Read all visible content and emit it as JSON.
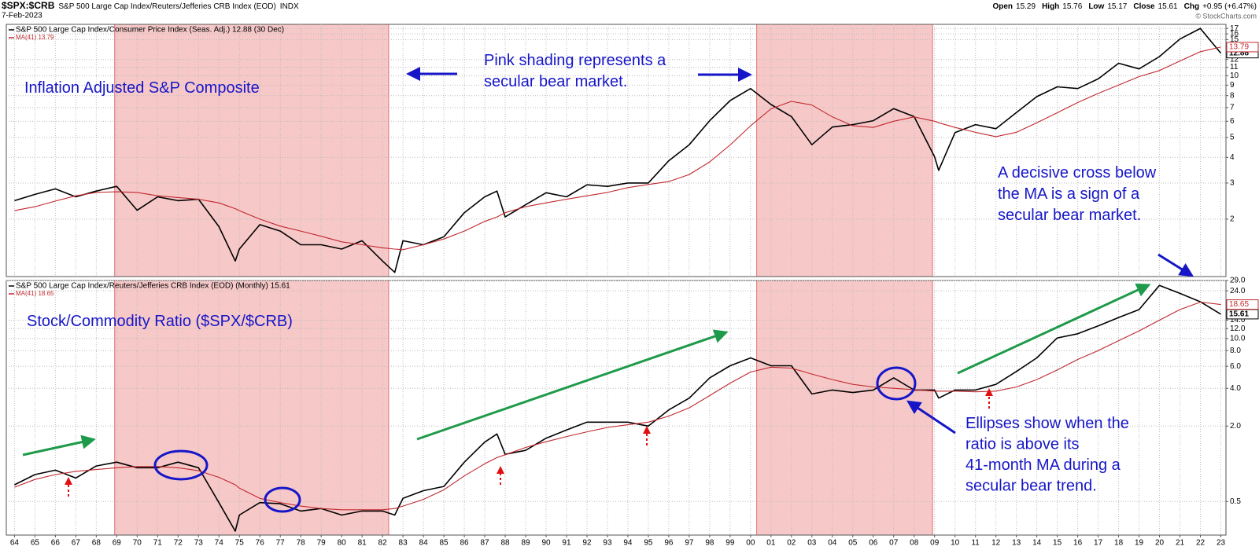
{
  "header": {
    "symbol": "$SPX:$CRB",
    "description": "S&P 500 Large Cap Index/Reuters/Jefferies CRB Index (EOD)",
    "exchange": "INDX",
    "date": "7-Feb-2023",
    "quote": [
      {
        "label": "Open",
        "value": 15.29
      },
      {
        "label": "High",
        "value": 15.76
      },
      {
        "label": "Low",
        "value": 15.17
      },
      {
        "label": "Close",
        "value": 15.61
      },
      {
        "label": "Chg",
        "value": "+0.95 (+6.47%)"
      }
    ],
    "watermark": "© StockCharts.com"
  },
  "chart_data": [
    {
      "type": "line",
      "log_y": true,
      "grid": true,
      "x": [
        1964,
        1965,
        1966,
        1967,
        1968,
        1969,
        1970,
        1971,
        1972,
        1973,
        1974,
        1974.8,
        1975,
        1976,
        1977,
        1978,
        1979,
        1980,
        1981,
        1982,
        1982.6,
        1983,
        1984,
        1985,
        1986,
        1987,
        1987.6,
        1988,
        1989,
        1990,
        1991,
        1992,
        1993,
        1994,
        1995,
        1996,
        1997,
        1998,
        1999,
        2000,
        2001,
        2002,
        2003,
        2004,
        2005,
        2006,
        2007,
        2008,
        2009,
        2009.2,
        2010,
        2011,
        2012,
        2013,
        2014,
        2015,
        2016,
        2017,
        2018,
        2019,
        2020,
        2021,
        2022,
        2023
      ],
      "series": [
        {
          "name": "S&P 500 Large Cap Index/Consumer Price Index (Seas. Adj.) 12.88 (30 Dec)",
          "color": "#000000",
          "last_value": 12.88,
          "values": [
            2.46,
            2.64,
            2.81,
            2.57,
            2.74,
            2.89,
            2.21,
            2.57,
            2.46,
            2.5,
            1.84,
            1.25,
            1.43,
            1.88,
            1.75,
            1.5,
            1.5,
            1.43,
            1.57,
            1.25,
            1.1,
            1.57,
            1.5,
            1.64,
            2.15,
            2.57,
            2.74,
            2.05,
            2.35,
            2.69,
            2.57,
            2.94,
            2.89,
            3.0,
            3.0,
            3.85,
            4.61,
            6.04,
            7.57,
            8.66,
            7.24,
            6.32,
            4.61,
            5.62,
            5.78,
            6.04,
            6.91,
            6.32,
            4.03,
            3.46,
            5.28,
            5.78,
            5.52,
            6.62,
            7.91,
            8.83,
            8.66,
            9.65,
            11.5,
            10.8,
            12.4,
            15.1,
            17.0,
            12.88
          ]
        },
        {
          "name": "MA(41) 13.79",
          "color": "#c0282e",
          "last_value": 13.79,
          "values": [
            2.2,
            2.3,
            2.45,
            2.6,
            2.7,
            2.72,
            2.7,
            2.6,
            2.55,
            2.5,
            2.4,
            2.25,
            2.2,
            2.0,
            1.85,
            1.75,
            1.65,
            1.55,
            1.5,
            1.45,
            1.43,
            1.42,
            1.5,
            1.6,
            1.75,
            1.95,
            2.05,
            2.15,
            2.3,
            2.4,
            2.5,
            2.6,
            2.7,
            2.85,
            2.95,
            3.05,
            3.3,
            3.8,
            4.6,
            5.7,
            6.9,
            7.5,
            7.2,
            6.3,
            5.7,
            5.6,
            6.0,
            6.3,
            6.0,
            5.9,
            5.6,
            5.3,
            5.05,
            5.3,
            5.9,
            6.6,
            7.4,
            8.2,
            9.0,
            9.9,
            10.6,
            11.8,
            13.1,
            13.79
          ]
        }
      ],
      "xlim": [
        1963.6,
        2023.25
      ],
      "ylim": [
        1.05,
        17.8
      ],
      "yticks": [
        2,
        3,
        4,
        5,
        6,
        7,
        8,
        9,
        10,
        11,
        12,
        15,
        16,
        17
      ],
      "shaded_ranges": [
        [
          1968.9,
          1982.3
        ],
        [
          2000.3,
          2008.9
        ]
      ],
      "annotations": [
        {
          "lines": [
            "Inflation Adjusted S&P Composite"
          ]
        },
        {
          "lines": [
            "Pink shading represents a",
            "secular bear market."
          ]
        },
        {
          "lines": [
            "A decisive cross below",
            "the MA is a sign of a",
            "secular bear market."
          ]
        }
      ]
    },
    {
      "type": "line",
      "log_y": true,
      "grid": true,
      "x": [
        1964,
        1965,
        1966,
        1967,
        1968,
        1969,
        1970,
        1971,
        1972,
        1973,
        1974,
        1974.8,
        1975,
        1976,
        1977,
        1978,
        1979,
        1980,
        1981,
        1982,
        1982.6,
        1983,
        1984,
        1985,
        1986,
        1987,
        1987.6,
        1988,
        1989,
        1990,
        1991,
        1992,
        1993,
        1994,
        1995,
        1996,
        1997,
        1998,
        1999,
        2000,
        2001,
        2002,
        2003,
        2004,
        2005,
        2006,
        2007,
        2008,
        2009,
        2009.2,
        2010,
        2011,
        2012,
        2013,
        2014,
        2015,
        2016,
        2017,
        2018,
        2019,
        2020,
        2021,
        2022,
        2023
      ],
      "series": [
        {
          "name": "S&P 500 Large Cap Index/Reuters/Jefferies CRB Index (EOD) (Monthly) 15.61",
          "color": "#000000",
          "last_value": 15.61,
          "values": [
            0.68,
            0.82,
            0.89,
            0.77,
            0.96,
            1.03,
            0.93,
            0.93,
            1.03,
            0.93,
            0.49,
            0.29,
            0.39,
            0.49,
            0.48,
            0.42,
            0.44,
            0.39,
            0.42,
            0.42,
            0.39,
            0.53,
            0.61,
            0.66,
            1.03,
            1.49,
            1.73,
            1.19,
            1.28,
            1.6,
            1.86,
            2.15,
            2.15,
            2.15,
            2.0,
            2.69,
            3.34,
            4.85,
            6.06,
            7.0,
            6.06,
            6.06,
            3.61,
            3.88,
            3.7,
            3.88,
            4.85,
            3.88,
            3.88,
            3.34,
            3.88,
            3.88,
            4.3,
            5.45,
            7.0,
            10.1,
            10.9,
            12.6,
            14.7,
            17.0,
            26.5,
            22.9,
            19.6,
            15.61
          ]
        },
        {
          "name": "MA(41) 18.65",
          "color": "#c0282e",
          "last_value": 18.65,
          "values": [
            0.65,
            0.75,
            0.82,
            0.87,
            0.9,
            0.93,
            0.95,
            0.95,
            0.93,
            0.88,
            0.78,
            0.68,
            0.64,
            0.53,
            0.49,
            0.46,
            0.44,
            0.43,
            0.43,
            0.43,
            0.44,
            0.46,
            0.52,
            0.62,
            0.8,
            1.0,
            1.12,
            1.18,
            1.35,
            1.5,
            1.65,
            1.8,
            1.95,
            2.05,
            2.15,
            2.4,
            2.8,
            3.5,
            4.4,
            5.4,
            5.9,
            5.8,
            5.2,
            4.7,
            4.3,
            4.1,
            4.0,
            3.9,
            3.8,
            3.8,
            3.8,
            3.75,
            3.8,
            4.1,
            4.7,
            5.6,
            6.8,
            8.0,
            9.6,
            11.5,
            14.0,
            17.0,
            19.5,
            18.65
          ]
        }
      ],
      "xlim": [
        1963.6,
        2023.25
      ],
      "ylim": [
        0.27,
        29
      ],
      "yticks": [
        0.5,
        {
          "value": 2,
          "label": "2.0"
        },
        {
          "value": 4,
          "label": "4.0"
        },
        {
          "value": 6,
          "label": "6.0"
        },
        {
          "value": 8,
          "label": "8.0"
        },
        {
          "value": 10,
          "label": "10.0"
        },
        {
          "value": 12,
          "label": "12.0"
        },
        {
          "value": 14,
          "label": "14.0"
        },
        {
          "value": 24,
          "label": "24.0"
        },
        {
          "value": 29,
          "label": "29.0"
        }
      ],
      "xticks": [
        {
          "value": 1964,
          "label": "64"
        },
        {
          "value": 1965,
          "label": "65"
        },
        {
          "value": 1966,
          "label": "66"
        },
        {
          "value": 1967,
          "label": "67"
        },
        {
          "value": 1968,
          "label": "68"
        },
        {
          "value": 1969,
          "label": "69"
        },
        {
          "value": 1970,
          "label": "70"
        },
        {
          "value": 1971,
          "label": "71"
        },
        {
          "value": 1972,
          "label": "72"
        },
        {
          "value": 1973,
          "label": "73"
        },
        {
          "value": 1974,
          "label": "74"
        },
        {
          "value": 1975,
          "label": "75"
        },
        {
          "value": 1976,
          "label": "76"
        },
        {
          "value": 1977,
          "label": "77"
        },
        {
          "value": 1978,
          "label": "78"
        },
        {
          "value": 1979,
          "label": "79"
        },
        {
          "value": 1980,
          "label": "80"
        },
        {
          "value": 1981,
          "label": "81"
        },
        {
          "value": 1982,
          "label": "82"
        },
        {
          "value": 1983,
          "label": "83"
        },
        {
          "value": 1984,
          "label": "84"
        },
        {
          "value": 1985,
          "label": "85"
        },
        {
          "value": 1986,
          "label": "86"
        },
        {
          "value": 1987,
          "label": "87"
        },
        {
          "value": 1988,
          "label": "88"
        },
        {
          "value": 1989,
          "label": "89"
        },
        {
          "value": 1990,
          "label": "90"
        },
        {
          "value": 1991,
          "label": "91"
        },
        {
          "value": 1992,
          "label": "92"
        },
        {
          "value": 1993,
          "label": "93"
        },
        {
          "value": 1994,
          "label": "94"
        },
        {
          "value": 1995,
          "label": "95"
        },
        {
          "value": 1996,
          "label": "96"
        },
        {
          "value": 1997,
          "label": "97"
        },
        {
          "value": 1998,
          "label": "98"
        },
        {
          "value": 1999,
          "label": "99"
        },
        {
          "value": 2000,
          "label": "00"
        },
        {
          "value": 2001,
          "label": "01"
        },
        {
          "value": 2002,
          "label": "02"
        },
        {
          "value": 2003,
          "label": "03"
        },
        {
          "value": 2004,
          "label": "04"
        },
        {
          "value": 2005,
          "label": "05"
        },
        {
          "value": 2006,
          "label": "06"
        },
        {
          "value": 2007,
          "label": "07"
        },
        {
          "value": 2008,
          "label": "08"
        },
        {
          "value": 2009,
          "label": "09"
        },
        {
          "value": 2010,
          "label": "10"
        },
        {
          "value": 2011,
          "label": "11"
        },
        {
          "value": 2012,
          "label": "12"
        },
        {
          "value": 2013,
          "label": "13"
        },
        {
          "value": 2014,
          "label": "14"
        },
        {
          "value": 2015,
          "label": "15"
        },
        {
          "value": 2016,
          "label": "16"
        },
        {
          "value": 2017,
          "label": "17"
        },
        {
          "value": 2018,
          "label": "18"
        },
        {
          "value": 2019,
          "label": "19"
        },
        {
          "value": 2020,
          "label": "20"
        },
        {
          "value": 2021,
          "label": "21"
        },
        {
          "value": 2022,
          "label": "22"
        },
        {
          "value": 2023,
          "label": "23"
        }
      ],
      "shaded_ranges": [
        [
          1968.9,
          1982.3
        ],
        [
          2000.3,
          2008.9
        ]
      ],
      "annotations": [
        {
          "lines": [
            "Stock/Commodity Ratio ($SPX/$CRB)"
          ]
        },
        {
          "lines": [
            "Ellipses show when the",
            "ratio is above its",
            "41-month MA during a",
            "secular bear trend."
          ]
        }
      ]
    }
  ]
}
